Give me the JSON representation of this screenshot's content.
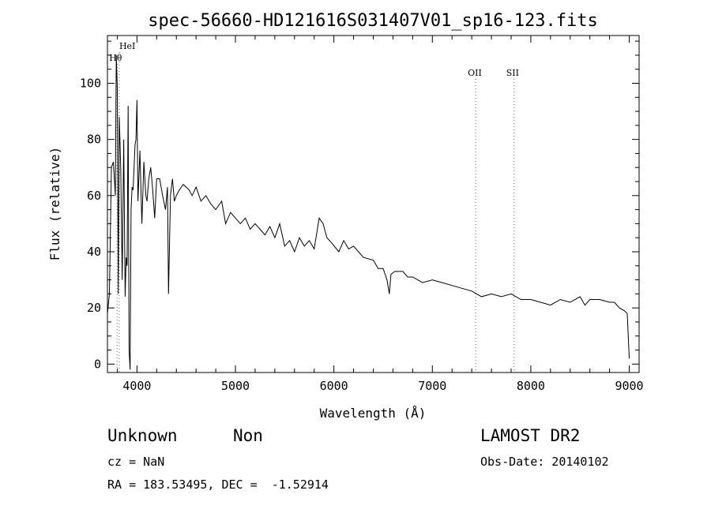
{
  "chart_data": {
    "type": "line",
    "title": "spec-56660-HD121616S031407V01_sp16-123.fits",
    "xlabel": "Wavelength (Å)",
    "ylabel": "Flux (relative)",
    "xlim": [
      3700,
      9100
    ],
    "ylim": [
      -3,
      117
    ],
    "x_ticks": [
      4000,
      5000,
      6000,
      7000,
      8000,
      9000
    ],
    "y_ticks": [
      0,
      20,
      40,
      60,
      80,
      100
    ],
    "grid": false,
    "lines": [
      {
        "label": "HeI",
        "x": 3820
      },
      {
        "label": "Hθ",
        "x": 3798
      },
      {
        "label": "OII",
        "x": 7440
      },
      {
        "label": "SII",
        "x": 7830
      }
    ],
    "series": [
      {
        "x": [
          3700,
          3720,
          3740,
          3760,
          3780,
          3790,
          3800,
          3810,
          3820,
          3835,
          3850,
          3865,
          3880,
          3890,
          3900,
          3910,
          3920,
          3930,
          3940,
          3950,
          3960,
          3970,
          3980,
          3990,
          4000,
          4010,
          4030,
          4050,
          4070,
          4090,
          4102,
          4120,
          4140,
          4160,
          4180,
          4200,
          4230,
          4260,
          4290,
          4310,
          4320,
          4340,
          4360,
          4380,
          4400,
          4430,
          4470,
          4500,
          4530,
          4560,
          4600,
          4650,
          4700,
          4750,
          4800,
          4860,
          4900,
          4950,
          5000,
          5050,
          5100,
          5150,
          5200,
          5250,
          5300,
          5350,
          5400,
          5450,
          5500,
          5550,
          5600,
          5650,
          5700,
          5750,
          5800,
          5850,
          5890,
          5930,
          5980,
          6050,
          6100,
          6150,
          6200,
          6250,
          6300,
          6400,
          6450,
          6500,
          6540,
          6563,
          6580,
          6620,
          6700,
          6750,
          6800,
          6900,
          7000,
          7100,
          7200,
          7300,
          7400,
          7500,
          7600,
          7700,
          7800,
          7900,
          8000,
          8100,
          8200,
          8300,
          8400,
          8500,
          8550,
          8600,
          8700,
          8800,
          8850,
          8900,
          8950,
          8980,
          9000
        ],
        "values": [
          18,
          25,
          70,
          72,
          60,
          110,
          98,
          25,
          88,
          70,
          30,
          80,
          24,
          38,
          35,
          92,
          5,
          -2,
          55,
          63,
          62,
          70,
          78,
          80,
          94,
          58,
          76,
          50,
          72,
          60,
          58,
          66,
          70,
          62,
          52,
          66,
          66,
          60,
          55,
          63,
          25,
          60,
          66,
          58,
          60,
          62,
          64,
          63,
          62,
          60,
          63,
          58,
          60,
          57,
          55,
          58,
          50,
          54,
          52,
          50,
          52,
          48,
          50,
          48,
          46,
          49,
          45,
          50,
          42,
          44,
          40,
          45,
          42,
          44,
          41,
          52,
          50,
          45,
          43,
          40,
          44,
          41,
          42,
          40,
          38,
          37,
          34,
          34,
          30,
          25,
          32,
          33,
          33,
          31,
          31,
          29,
          30,
          29,
          28,
          27,
          26,
          24,
          25,
          24,
          25,
          23,
          23,
          22,
          21,
          23,
          22,
          24,
          21,
          23,
          23,
          22,
          22,
          20,
          19,
          18,
          2
        ]
      }
    ]
  },
  "info": {
    "object_class": "Unknown",
    "subclass": "Non",
    "survey": "LAMOST DR2",
    "cz": "cz = NaN",
    "obs_date": "Obs-Date: 20140102",
    "coords": "RA = 183.53495, DEC =  -1.52914"
  }
}
